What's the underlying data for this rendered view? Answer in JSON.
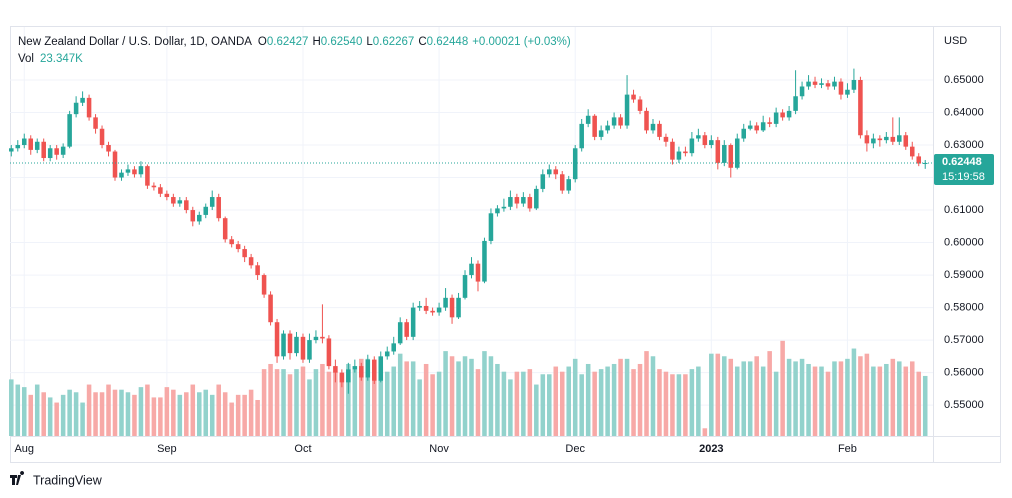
{
  "chart_data": {
    "type": "candlestick",
    "title": "New Zealand Dollar / U.S. Dollar, 1D, OANDA",
    "ohlc": {
      "open_label": "O",
      "open": 0.62427,
      "high_label": "H",
      "high": 0.6254,
      "low_label": "L",
      "low": 0.62267,
      "close_label": "C",
      "close": 0.62448,
      "change": "+0.00021 (+0.03%)"
    },
    "ohlc_labels": {
      "open": "0.62427",
      "high": "0.62540",
      "low": "0.62267",
      "close": "0.62448"
    },
    "volume_title": "Vol",
    "volume_label": "23.347K",
    "currency": "USD",
    "last_price": {
      "value": 0.62448,
      "label": "0.62448"
    },
    "countdown": "15:19:58",
    "up_color": "#26a69a",
    "down_color": "#ef5350",
    "up_volume_color": "#92d2cc",
    "down_volume_color": "#f7a9a7",
    "ylim": [
      0.5405,
      0.6663
    ],
    "yticks": [
      {
        "value": 0.55,
        "label": "0.55000"
      },
      {
        "value": 0.56,
        "label": "0.56000"
      },
      {
        "value": 0.57,
        "label": "0.57000"
      },
      {
        "value": 0.58,
        "label": "0.58000"
      },
      {
        "value": 0.59,
        "label": "0.59000"
      },
      {
        "value": 0.6,
        "label": "0.60000"
      },
      {
        "value": 0.61,
        "label": "0.61000"
      },
      {
        "value": 0.62,
        "label": "0.62000"
      },
      {
        "value": 0.63,
        "label": "0.63000"
      },
      {
        "value": 0.64,
        "label": "0.64000"
      },
      {
        "value": 0.65,
        "label": "0.65000"
      }
    ],
    "xlim": [
      -0.2,
      142.2
    ],
    "xticks": [
      {
        "value": 2,
        "label": "Aug"
      },
      {
        "value": 24,
        "label": "Sep"
      },
      {
        "value": 45,
        "label": "Oct"
      },
      {
        "value": 66,
        "label": "Nov"
      },
      {
        "value": 87,
        "label": "Dec"
      },
      {
        "value": 108,
        "label": "2023"
      },
      {
        "value": 129,
        "label": "Feb"
      }
    ],
    "grid": true,
    "candles": [
      [
        0.628,
        0.63,
        0.6265,
        0.629
      ],
      [
        0.629,
        0.6315,
        0.628,
        0.63
      ],
      [
        0.63,
        0.6335,
        0.629,
        0.632
      ],
      [
        0.632,
        0.633,
        0.627,
        0.6285
      ],
      [
        0.6285,
        0.632,
        0.6275,
        0.631
      ],
      [
        0.631,
        0.632,
        0.625,
        0.626
      ],
      [
        0.626,
        0.63,
        0.625,
        0.629
      ],
      [
        0.629,
        0.63,
        0.6255,
        0.627
      ],
      [
        0.627,
        0.6305,
        0.626,
        0.6295
      ],
      [
        0.6295,
        0.6405,
        0.629,
        0.6395
      ],
      [
        0.6395,
        0.645,
        0.6385,
        0.643
      ],
      [
        0.643,
        0.6465,
        0.642,
        0.6445
      ],
      [
        0.6445,
        0.6455,
        0.6375,
        0.6385
      ],
      [
        0.6385,
        0.6395,
        0.6335,
        0.635
      ],
      [
        0.635,
        0.636,
        0.629,
        0.63
      ],
      [
        0.63,
        0.631,
        0.6265,
        0.628
      ],
      [
        0.628,
        0.6285,
        0.619,
        0.62
      ],
      [
        0.62,
        0.6225,
        0.619,
        0.6215
      ],
      [
        0.6215,
        0.624,
        0.6205,
        0.6225
      ],
      [
        0.6225,
        0.6235,
        0.62,
        0.621
      ],
      [
        0.621,
        0.625,
        0.62,
        0.6235
      ],
      [
        0.6235,
        0.624,
        0.6165,
        0.6175
      ],
      [
        0.6175,
        0.6185,
        0.616,
        0.617
      ],
      [
        0.617,
        0.618,
        0.614,
        0.615
      ],
      [
        0.615,
        0.616,
        0.613,
        0.614
      ],
      [
        0.614,
        0.615,
        0.611,
        0.612
      ],
      [
        0.612,
        0.614,
        0.611,
        0.613
      ],
      [
        0.613,
        0.614,
        0.609,
        0.61
      ],
      [
        0.61,
        0.611,
        0.605,
        0.6065
      ],
      [
        0.6065,
        0.6095,
        0.6055,
        0.6085
      ],
      [
        0.6085,
        0.612,
        0.6075,
        0.611
      ],
      [
        0.611,
        0.616,
        0.61,
        0.614
      ],
      [
        0.614,
        0.615,
        0.6065,
        0.6075
      ],
      [
        0.6075,
        0.608,
        0.6,
        0.601
      ],
      [
        0.601,
        0.602,
        0.5985,
        0.5995
      ],
      [
        0.5995,
        0.6005,
        0.597,
        0.598
      ],
      [
        0.598,
        0.599,
        0.594,
        0.5955
      ],
      [
        0.5955,
        0.5965,
        0.592,
        0.593
      ],
      [
        0.593,
        0.594,
        0.5885,
        0.59
      ],
      [
        0.59,
        0.5905,
        0.583,
        0.584
      ],
      [
        0.584,
        0.585,
        0.5745,
        0.5755
      ],
      [
        0.5755,
        0.5765,
        0.563,
        0.565
      ],
      [
        0.565,
        0.573,
        0.564,
        0.572
      ],
      [
        0.572,
        0.573,
        0.564,
        0.566
      ],
      [
        0.566,
        0.5725,
        0.565,
        0.571
      ],
      [
        0.571,
        0.572,
        0.563,
        0.564
      ],
      [
        0.564,
        0.572,
        0.563,
        0.57
      ],
      [
        0.57,
        0.573,
        0.569,
        0.571
      ],
      [
        0.571,
        0.581,
        0.569,
        0.5705
      ],
      [
        0.5705,
        0.5715,
        0.561,
        0.562
      ],
      [
        0.562,
        0.564,
        0.557,
        0.56
      ],
      [
        0.56,
        0.561,
        0.5555,
        0.557
      ],
      [
        0.557,
        0.563,
        0.5535,
        0.561
      ],
      [
        0.561,
        0.564,
        0.56,
        0.562
      ],
      [
        0.562,
        0.563,
        0.5575,
        0.5585
      ],
      [
        0.5585,
        0.5655,
        0.5575,
        0.564
      ],
      [
        0.564,
        0.565,
        0.5565,
        0.5575
      ],
      [
        0.5575,
        0.5665,
        0.557,
        0.565
      ],
      [
        0.565,
        0.568,
        0.564,
        0.5665
      ],
      [
        0.5665,
        0.571,
        0.5655,
        0.569
      ],
      [
        0.569,
        0.577,
        0.5685,
        0.5755
      ],
      [
        0.5755,
        0.5765,
        0.57,
        0.571
      ],
      [
        0.571,
        0.5815,
        0.57,
        0.58
      ],
      [
        0.58,
        0.582,
        0.579,
        0.5805
      ],
      [
        0.5805,
        0.583,
        0.578,
        0.579
      ],
      [
        0.579,
        0.58,
        0.5775,
        0.5785
      ],
      [
        0.5785,
        0.5815,
        0.5775,
        0.58
      ],
      [
        0.58,
        0.586,
        0.579,
        0.583
      ],
      [
        0.583,
        0.584,
        0.575,
        0.577
      ],
      [
        0.577,
        0.5845,
        0.5765,
        0.583
      ],
      [
        0.583,
        0.5915,
        0.5825,
        0.59
      ],
      [
        0.59,
        0.5955,
        0.589,
        0.5935
      ],
      [
        0.5935,
        0.5945,
        0.585,
        0.588
      ],
      [
        0.588,
        0.6015,
        0.5875,
        0.6005
      ],
      [
        0.6005,
        0.6105,
        0.5995,
        0.609
      ],
      [
        0.609,
        0.6115,
        0.608,
        0.6105
      ],
      [
        0.6105,
        0.6135,
        0.6095,
        0.611
      ],
      [
        0.611,
        0.616,
        0.61,
        0.614
      ],
      [
        0.614,
        0.615,
        0.6105,
        0.612
      ],
      [
        0.612,
        0.6155,
        0.611,
        0.614
      ],
      [
        0.614,
        0.615,
        0.6095,
        0.6105
      ],
      [
        0.6105,
        0.6175,
        0.61,
        0.6165
      ],
      [
        0.6165,
        0.6225,
        0.6155,
        0.621
      ],
      [
        0.621,
        0.624,
        0.62,
        0.6225
      ],
      [
        0.6225,
        0.6235,
        0.6195,
        0.621
      ],
      [
        0.621,
        0.622,
        0.615,
        0.616
      ],
      [
        0.616,
        0.6205,
        0.615,
        0.6195
      ],
      [
        0.6195,
        0.63,
        0.6185,
        0.629
      ],
      [
        0.629,
        0.638,
        0.628,
        0.6365
      ],
      [
        0.6365,
        0.641,
        0.6355,
        0.639
      ],
      [
        0.639,
        0.6395,
        0.6315,
        0.6325
      ],
      [
        0.6325,
        0.636,
        0.6315,
        0.6345
      ],
      [
        0.6345,
        0.6375,
        0.6335,
        0.636
      ],
      [
        0.636,
        0.64,
        0.635,
        0.6385
      ],
      [
        0.6385,
        0.6395,
        0.635,
        0.636
      ],
      [
        0.636,
        0.6515,
        0.635,
        0.6455
      ],
      [
        0.6455,
        0.647,
        0.643,
        0.644
      ],
      [
        0.644,
        0.645,
        0.6395,
        0.6405
      ],
      [
        0.6405,
        0.6415,
        0.6335,
        0.6345
      ],
      [
        0.6345,
        0.638,
        0.6335,
        0.6365
      ],
      [
        0.6365,
        0.6375,
        0.6315,
        0.6325
      ],
      [
        0.6325,
        0.6335,
        0.6295,
        0.631
      ],
      [
        0.631,
        0.632,
        0.624,
        0.6255
      ],
      [
        0.6255,
        0.6295,
        0.6245,
        0.628
      ],
      [
        0.628,
        0.6295,
        0.6265,
        0.6275
      ],
      [
        0.6275,
        0.634,
        0.6265,
        0.632
      ],
      [
        0.632,
        0.635,
        0.631,
        0.633
      ],
      [
        0.633,
        0.634,
        0.629,
        0.63
      ],
      [
        0.63,
        0.633,
        0.629,
        0.6315
      ],
      [
        0.6315,
        0.6325,
        0.6225,
        0.6245
      ],
      [
        0.6245,
        0.6315,
        0.6235,
        0.63
      ],
      [
        0.63,
        0.6305,
        0.62,
        0.623
      ],
      [
        0.623,
        0.6335,
        0.6225,
        0.632
      ],
      [
        0.632,
        0.6365,
        0.631,
        0.635
      ],
      [
        0.635,
        0.6375,
        0.6345,
        0.636
      ],
      [
        0.636,
        0.637,
        0.6335,
        0.6345
      ],
      [
        0.6345,
        0.639,
        0.634,
        0.637
      ],
      [
        0.637,
        0.6385,
        0.6355,
        0.6365
      ],
      [
        0.6365,
        0.6415,
        0.6355,
        0.64
      ],
      [
        0.64,
        0.641,
        0.6375,
        0.6385
      ],
      [
        0.6385,
        0.642,
        0.6375,
        0.6405
      ],
      [
        0.6405,
        0.653,
        0.6395,
        0.645
      ],
      [
        0.645,
        0.6495,
        0.644,
        0.648
      ],
      [
        0.648,
        0.6515,
        0.647,
        0.6495
      ],
      [
        0.6495,
        0.651,
        0.6475,
        0.6485
      ],
      [
        0.6485,
        0.6505,
        0.6475,
        0.649
      ],
      [
        0.649,
        0.65,
        0.647,
        0.648
      ],
      [
        0.648,
        0.651,
        0.647,
        0.6495
      ],
      [
        0.6495,
        0.6505,
        0.644,
        0.6455
      ],
      [
        0.6455,
        0.649,
        0.6445,
        0.647
      ],
      [
        0.647,
        0.6535,
        0.646,
        0.65
      ],
      [
        0.65,
        0.651,
        0.632,
        0.633
      ],
      [
        0.633,
        0.6345,
        0.628,
        0.6305
      ],
      [
        0.6305,
        0.6335,
        0.629,
        0.632
      ],
      [
        0.632,
        0.633,
        0.6295,
        0.6315
      ],
      [
        0.6315,
        0.634,
        0.6305,
        0.6325
      ],
      [
        0.6325,
        0.6385,
        0.63,
        0.631
      ],
      [
        0.631,
        0.6385,
        0.63,
        0.633
      ],
      [
        0.633,
        0.634,
        0.6285,
        0.6295
      ],
      [
        0.6295,
        0.631,
        0.6255,
        0.6265
      ],
      [
        0.6265,
        0.6275,
        0.6235,
        0.6243
      ],
      [
        0.62427,
        0.6254,
        0.62267,
        0.62448
      ]
    ],
    "volume": {
      "ylim": [
        0,
        159
      ],
      "values": [
        22,
        20,
        19,
        16,
        20,
        17,
        15,
        13,
        16,
        18,
        17,
        13,
        20,
        17,
        17,
        20,
        18,
        18,
        17,
        16,
        19,
        20,
        15,
        15,
        19,
        18,
        16,
        17,
        20,
        17,
        18,
        16,
        20,
        17,
        13,
        16,
        16,
        18,
        14,
        26,
        28,
        26,
        26,
        24,
        26,
        27,
        22,
        26,
        28,
        25,
        25,
        24,
        28,
        26,
        30,
        30,
        27,
        27,
        25,
        27,
        32,
        29,
        29,
        22,
        28,
        24,
        25,
        33,
        31,
        29,
        31,
        30,
        26,
        33,
        31,
        28,
        25,
        22,
        25,
        25,
        26,
        20,
        24,
        24,
        27,
        25,
        27,
        30,
        24,
        28,
        25,
        26,
        27,
        28,
        30,
        30,
        26,
        28,
        33,
        31,
        26,
        25,
        24,
        24,
        24,
        26,
        27,
        3,
        32,
        32,
        31,
        30,
        27,
        29,
        29,
        31,
        27,
        33,
        25,
        37,
        30,
        29,
        30,
        28,
        27,
        27,
        25,
        29,
        29,
        30,
        34,
        31,
        32,
        27,
        27,
        28,
        30,
        29,
        27,
        29,
        25,
        23.347
      ]
    },
    "footer": "TradingView"
  }
}
